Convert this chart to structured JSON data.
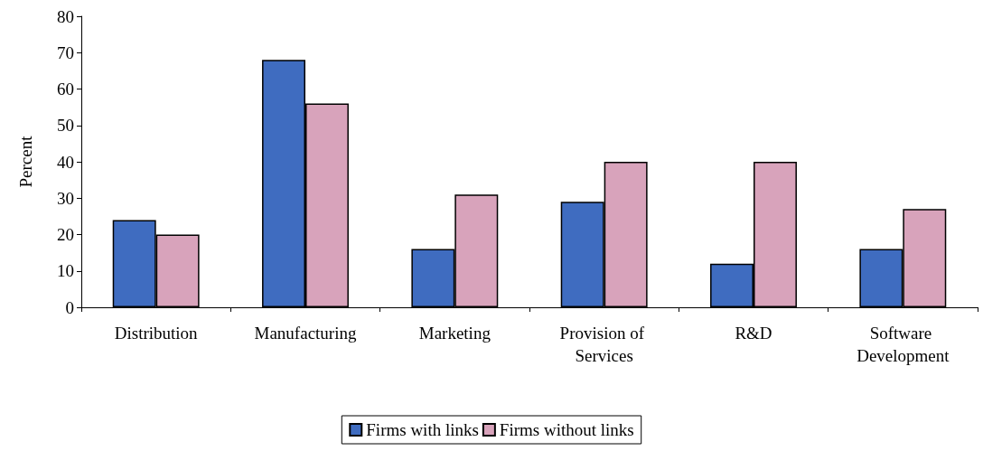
{
  "chart_data": {
    "type": "bar",
    "ylabel": "Percent",
    "categories": [
      "Distribution",
      "Manufacturing",
      "Marketing",
      "Provision of Services",
      "R&D",
      "Software Development"
    ],
    "series": [
      {
        "name": "Firms with links",
        "color": "#3f6cc0",
        "values": [
          24,
          68,
          16,
          29,
          12,
          16
        ]
      },
      {
        "name": "Firms without links",
        "color": "#d8a3bb",
        "values": [
          20,
          56,
          31,
          40,
          40,
          27
        ]
      }
    ],
    "ylim": [
      0,
      80
    ],
    "yticks": [
      0,
      10,
      20,
      30,
      40,
      50,
      60,
      70,
      80
    ],
    "grid": false,
    "legend": "bottom"
  }
}
